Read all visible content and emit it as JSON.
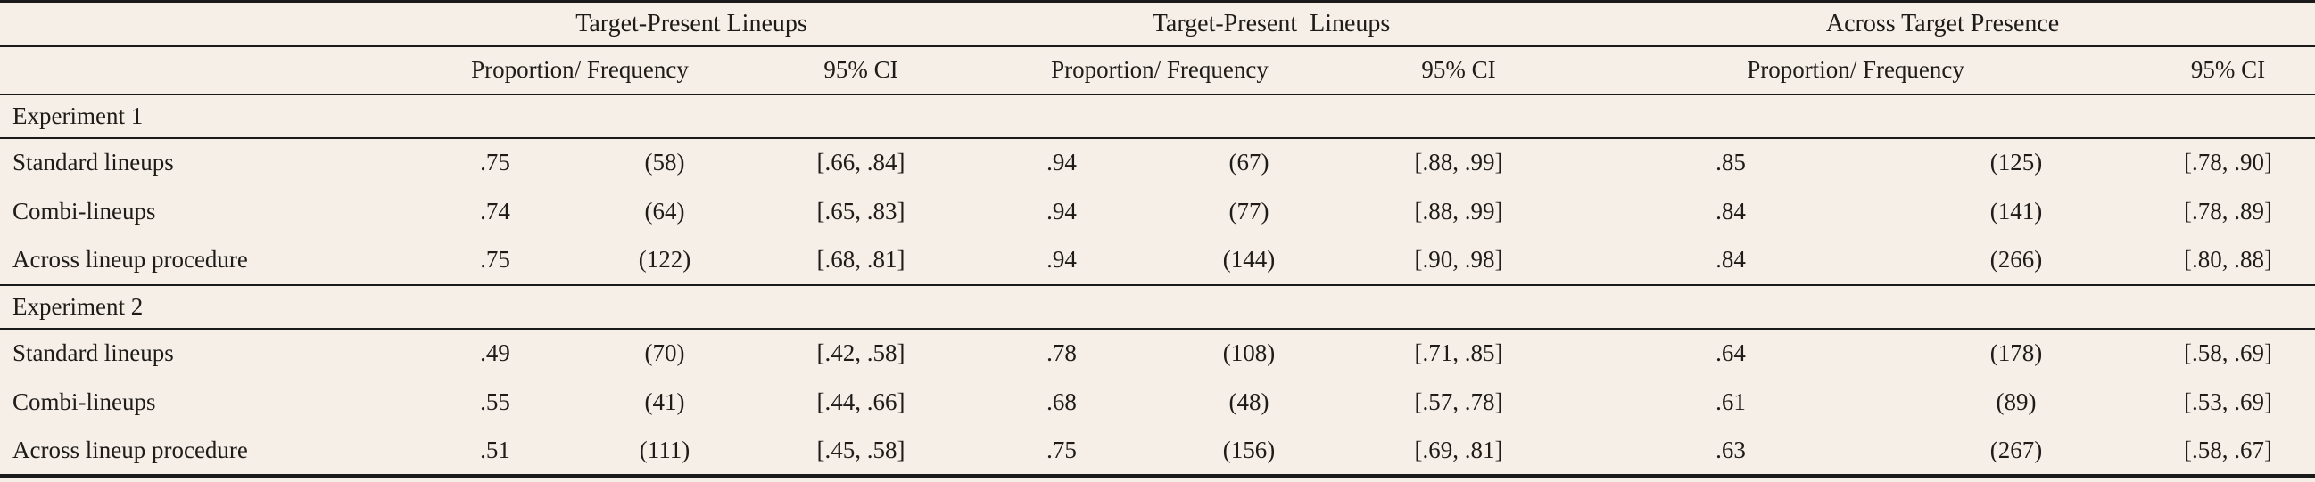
{
  "table": {
    "groups": [
      {
        "label": "Target-Present Lineups",
        "prop_freq_label": "Proportion/ Frequency",
        "ci_label": "95% CI"
      },
      {
        "label": "Target-Present  Lineups",
        "prop_freq_label": "Proportion/ Frequency",
        "ci_label": "95% CI"
      },
      {
        "label": "Across Target Presence",
        "prop_freq_label": "Proportion/ Frequency",
        "ci_label": "95% CI"
      }
    ],
    "sections": [
      {
        "title": "Experiment 1",
        "rows": [
          {
            "label": "Standard lineups",
            "cells": [
              ".75",
              "(58)",
              "[.66, .84]",
              ".94",
              "(67)",
              "[.88, .99]",
              ".85",
              "(125)",
              "[.78, .90]"
            ]
          },
          {
            "label": "Combi-lineups",
            "cells": [
              ".74",
              "(64)",
              "[.65, .83]",
              ".94",
              "(77)",
              "[.88, .99]",
              ".84",
              "(141)",
              "[.78, .89]"
            ]
          },
          {
            "label": "Across lineup procedure",
            "cells": [
              ".75",
              "(122)",
              "[.68, .81]",
              ".94",
              "(144)",
              "[.90, .98]",
              ".84",
              "(266)",
              "[.80, .88]"
            ]
          }
        ]
      },
      {
        "title": "Experiment 2",
        "rows": [
          {
            "label": "Standard lineups",
            "cells": [
              ".49",
              "(70)",
              "[.42, .58]",
              ".78",
              "(108)",
              "[.71, .85]",
              ".64",
              "(178)",
              "[.58, .69]"
            ]
          },
          {
            "label": "Combi-lineups",
            "cells": [
              ".55",
              "(41)",
              "[.44, .66]",
              ".68",
              "(48)",
              "[.57, .78]",
              ".61",
              "(89)",
              "[.53, .69]"
            ]
          },
          {
            "label": "Across lineup procedure",
            "cells": [
              ".51",
              "(111)",
              "[.45, .58]",
              ".75",
              "(156)",
              "[.69, .81]",
              ".63",
              "(267)",
              "[.58, .67]"
            ]
          }
        ]
      }
    ],
    "colors": {
      "background": "#f5efe7",
      "text": "#1e1b18",
      "rule": "#1a1a1a"
    }
  }
}
